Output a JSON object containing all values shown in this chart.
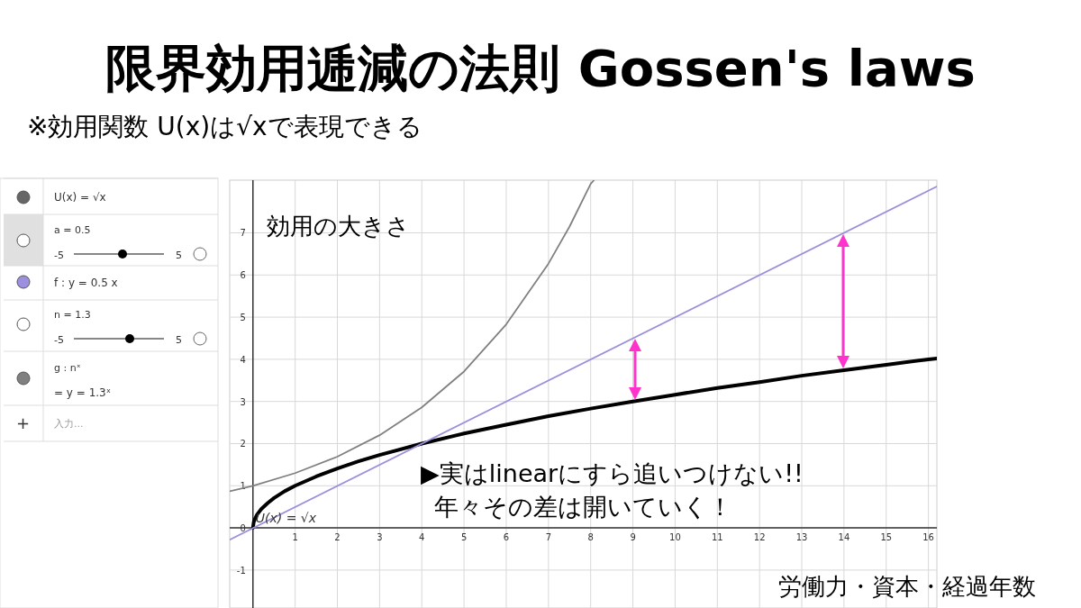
{
  "chart_data": {
    "type": "line",
    "title": "限界効用逓減の法則 Gossen's laws",
    "subtitle": "※効用関数 U(x)は√xで表現できる",
    "xlabel": "労働力・資本・経過年数",
    "ylabel": "効用の大きさ",
    "xlim": [
      -0.55,
      16.2
    ],
    "ylim": [
      -1.9,
      8.25
    ],
    "xticks": [
      1,
      2,
      3,
      4,
      5,
      6,
      7,
      8,
      9,
      10,
      11,
      12,
      13,
      14,
      15,
      16
    ],
    "yticks": [
      -1,
      0,
      1,
      2,
      3,
      4,
      5,
      6,
      7
    ],
    "grid": true,
    "series": [
      {
        "color": "#000000",
        "x": [
          0,
          0.02,
          0.05,
          0.1,
          0.2,
          0.35,
          0.5,
          0.75,
          1,
          1.5,
          2,
          2.5,
          3,
          4,
          5,
          6,
          7,
          8,
          9,
          10,
          11,
          12,
          13,
          14,
          15,
          16,
          16.2
        ],
        "values": [
          0,
          0.14,
          0.22,
          0.32,
          0.45,
          0.59,
          0.71,
          0.87,
          1,
          1.22,
          1.41,
          1.58,
          1.73,
          2,
          2.24,
          2.45,
          2.65,
          2.83,
          3,
          3.16,
          3.32,
          3.46,
          3.61,
          3.74,
          3.87,
          4,
          4.02
        ]
      },
      {
        "color": "#9b8fe0",
        "x": [
          -0.55,
          16.2
        ],
        "values": [
          -0.28,
          8.1
        ]
      },
      {
        "color": "#808080",
        "x": [
          -0.55,
          0,
          1,
          2,
          3,
          4,
          5,
          6,
          7,
          7.5,
          8,
          8.07
        ],
        "values": [
          0.87,
          1,
          1.3,
          1.69,
          2.2,
          2.86,
          3.71,
          4.83,
          6.27,
          7.15,
          8.16,
          8.24
        ]
      }
    ],
    "annotations": [
      "▶実はlinearにすら追いつけない!!",
      "年々その差は開いていく！",
      {
        "text": "U(x) = √x",
        "x": 0,
        "y": 0
      },
      "U(x) = √x",
      "a = 0.5",
      "-5",
      "5",
      "f : y = 0.5 x",
      "n = 1.3",
      "-5",
      "5",
      "g : nˣ",
      "= y = 1.3ˣ",
      "+",
      "入力..."
    ]
  }
}
